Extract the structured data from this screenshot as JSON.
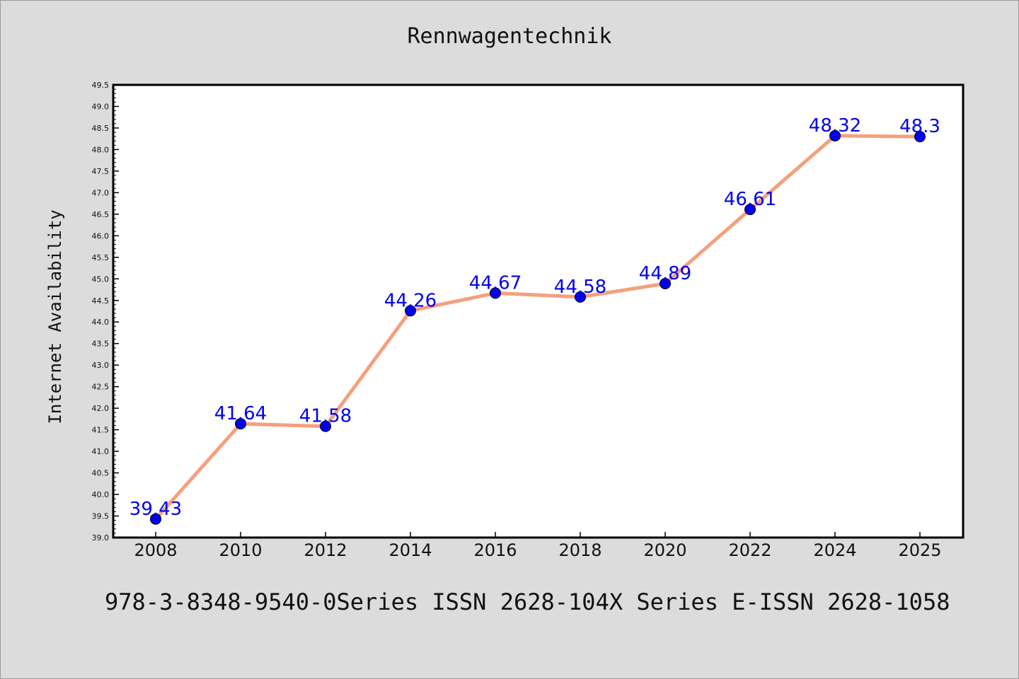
{
  "chart_data": {
    "type": "line",
    "title": "Rennwagentechnik",
    "xlabel": "",
    "ylabel": "Internet Availability",
    "categories": [
      "2008",
      "2010",
      "2012",
      "2014",
      "2016",
      "2018",
      "2020",
      "2022",
      "2024",
      "2025"
    ],
    "series": [
      {
        "values": [
          39.43,
          41.64,
          41.58,
          44.26,
          44.67,
          44.58,
          44.89,
          46.61,
          48.32,
          48.3
        ],
        "labels": [
          "39.43",
          "41.64",
          "41.58",
          "44.26",
          "44.67",
          "44.58",
          "44.89",
          "46.61",
          "48.32",
          "48.3"
        ],
        "line_color": "#f4a07e",
        "marker_color": "#0000ee"
      }
    ],
    "ylim": [
      39.0,
      49.5
    ],
    "yticks": [
      "39.0",
      "39.5",
      "40.0",
      "40.5",
      "41.0",
      "41.5",
      "42.0",
      "42.5",
      "43.0",
      "43.5",
      "44.0",
      "44.5",
      "45.0",
      "45.5",
      "46.0",
      "46.5",
      "47.0",
      "47.5",
      "48.0",
      "48.5",
      "49.0",
      "49.5"
    ],
    "grid": false,
    "legend": "none"
  },
  "footer_text": "978-3-8348-9540-0Series ISSN 2628-104X Series E-ISSN 2628-1058",
  "colors": {
    "background": "#dcdcdc",
    "plot_background": "#ffffff"
  }
}
